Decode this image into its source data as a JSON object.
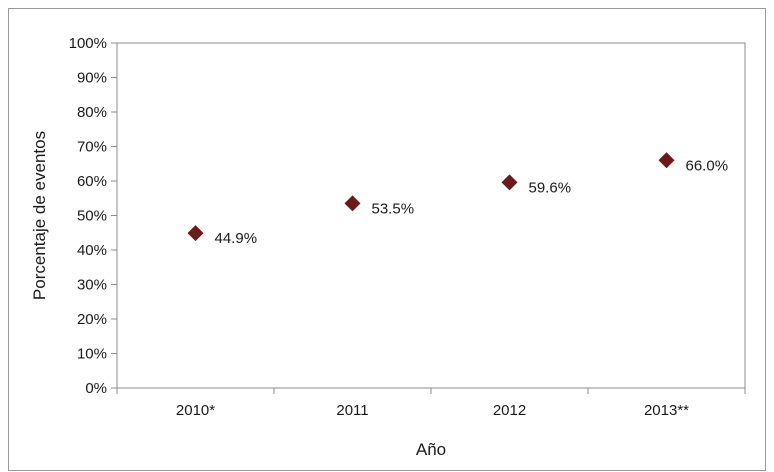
{
  "chart_data": {
    "type": "scatter",
    "categories": [
      "2010*",
      "2011",
      "2012",
      "2013**"
    ],
    "values": [
      44.9,
      53.5,
      59.6,
      66.0
    ],
    "data_labels": [
      "44.9%",
      "53.5%",
      "59.6%",
      "66.0%"
    ],
    "xlabel": "Año",
    "ylabel": "Porcentaje de eventos",
    "ylim": [
      0,
      100
    ],
    "y_ticks": [
      0,
      10,
      20,
      30,
      40,
      50,
      60,
      70,
      80,
      90,
      100
    ],
    "y_tick_labels": [
      "0%",
      "10%",
      "20%",
      "30%",
      "40%",
      "50%",
      "60%",
      "70%",
      "80%",
      "90%",
      "100%"
    ],
    "grid": false,
    "legend": "none",
    "marker": "diamond",
    "colors": {
      "marker": "#6b1a1a",
      "axis": "#8c8c8c",
      "frame": "#9a9a9a"
    }
  }
}
